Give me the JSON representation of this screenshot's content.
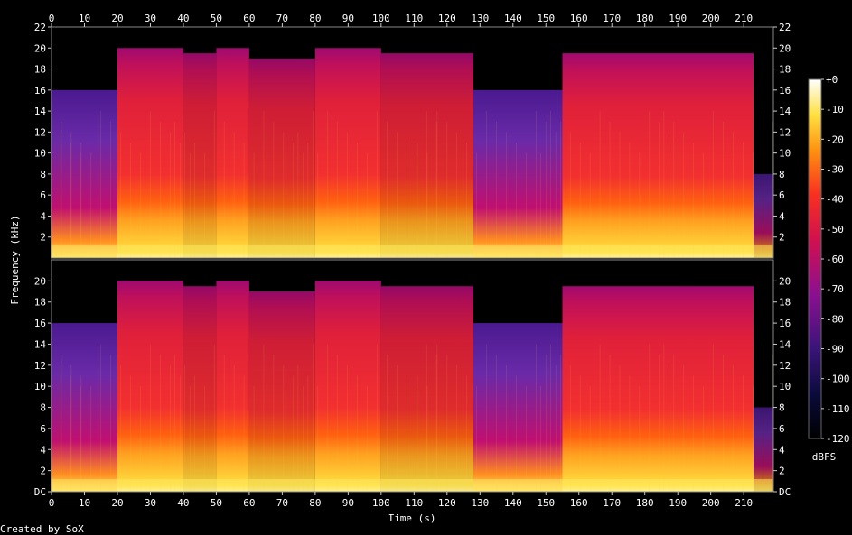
{
  "chart_data": {
    "type": "heatmap",
    "xlabel": "Time (s)",
    "ylabel": "Frequency (kHz)",
    "xlim": [
      0,
      219
    ],
    "x_ticks": [
      0,
      10,
      20,
      30,
      40,
      50,
      60,
      70,
      80,
      90,
      100,
      110,
      120,
      130,
      140,
      150,
      160,
      170,
      180,
      190,
      200,
      210
    ],
    "y_ticks_top": [
      "2",
      "4",
      "6",
      "8",
      "10",
      "12",
      "14",
      "16",
      "18",
      "20",
      "22"
    ],
    "y_ticks_bottom": [
      "DC",
      "2",
      "4",
      "6",
      "8",
      "10",
      "12",
      "14",
      "16",
      "18",
      "20"
    ],
    "ylim_khz": [
      0,
      22
    ],
    "colorbar": {
      "label": "dBFS",
      "ticks": [
        "+0",
        "-10",
        "-20",
        "-30",
        "-40",
        "-50",
        "-60",
        "-70",
        "-80",
        "-90",
        "-100",
        "-110",
        "-120"
      ],
      "range": [
        -120,
        0
      ]
    },
    "channels": [
      {
        "segments": [
          {
            "t": [
              0,
              20
            ],
            "cutoff_khz": 16,
            "level": "low"
          },
          {
            "t": [
              20,
              40
            ],
            "cutoff_khz": 20,
            "level": "high"
          },
          {
            "t": [
              40,
              50
            ],
            "cutoff_khz": 19.5,
            "level": "mid"
          },
          {
            "t": [
              50,
              60
            ],
            "cutoff_khz": 20,
            "level": "high"
          },
          {
            "t": [
              60,
              80
            ],
            "cutoff_khz": 19,
            "level": "mid"
          },
          {
            "t": [
              80,
              100
            ],
            "cutoff_khz": 20,
            "level": "high"
          },
          {
            "t": [
              100,
              128
            ],
            "cutoff_khz": 19.5,
            "level": "mid"
          },
          {
            "t": [
              128,
              155
            ],
            "cutoff_khz": 16,
            "level": "low"
          },
          {
            "t": [
              155,
              213
            ],
            "cutoff_khz": 19.5,
            "level": "high"
          },
          {
            "t": [
              213,
              219
            ],
            "cutoff_khz": 8,
            "level": "fade"
          }
        ]
      },
      {
        "segments": [
          {
            "t": [
              0,
              20
            ],
            "cutoff_khz": 16,
            "level": "low"
          },
          {
            "t": [
              20,
              40
            ],
            "cutoff_khz": 20,
            "level": "high"
          },
          {
            "t": [
              40,
              50
            ],
            "cutoff_khz": 19.5,
            "level": "mid"
          },
          {
            "t": [
              50,
              60
            ],
            "cutoff_khz": 20,
            "level": "high"
          },
          {
            "t": [
              60,
              80
            ],
            "cutoff_khz": 19,
            "level": "mid"
          },
          {
            "t": [
              80,
              100
            ],
            "cutoff_khz": 20,
            "level": "high"
          },
          {
            "t": [
              100,
              128
            ],
            "cutoff_khz": 19.5,
            "level": "mid"
          },
          {
            "t": [
              128,
              155
            ],
            "cutoff_khz": 16,
            "level": "low"
          },
          {
            "t": [
              155,
              213
            ],
            "cutoff_khz": 19.5,
            "level": "high"
          },
          {
            "t": [
              213,
              219
            ],
            "cutoff_khz": 8,
            "level": "fade"
          }
        ]
      }
    ]
  },
  "footer": {
    "credit": "Created by SoX"
  }
}
